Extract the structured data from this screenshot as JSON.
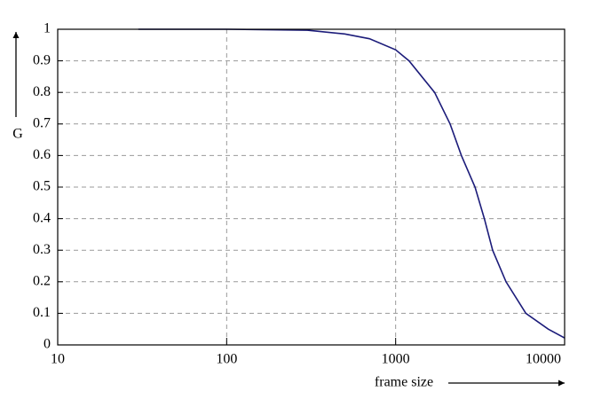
{
  "chart_data": {
    "type": "line",
    "xlabel": "frame size",
    "ylabel": "G",
    "x": [
      30,
      100,
      300,
      500,
      700,
      1000,
      1200,
      1700,
      2100,
      2450,
      2950,
      3350,
      3750,
      4500,
      5900,
      8000,
      10000
    ],
    "series": [
      {
        "color": "#1c1c7a",
        "values": [
          1,
          1,
          0.997,
          0.985,
          0.97,
          0.935,
          0.9,
          0.8,
          0.7,
          0.6,
          0.5,
          0.4,
          0.3,
          0.2,
          0.1,
          0.05,
          0.022
        ]
      }
    ],
    "xscale": "log",
    "xlim": [
      10,
      10000
    ],
    "xticks": [
      10,
      100,
      1000,
      10000
    ],
    "ylim": [
      0,
      1
    ],
    "yticks": [
      0,
      0.1,
      0.2,
      0.3,
      0.4,
      0.5,
      0.6,
      0.7,
      0.8,
      0.9,
      1
    ],
    "grid": true
  }
}
